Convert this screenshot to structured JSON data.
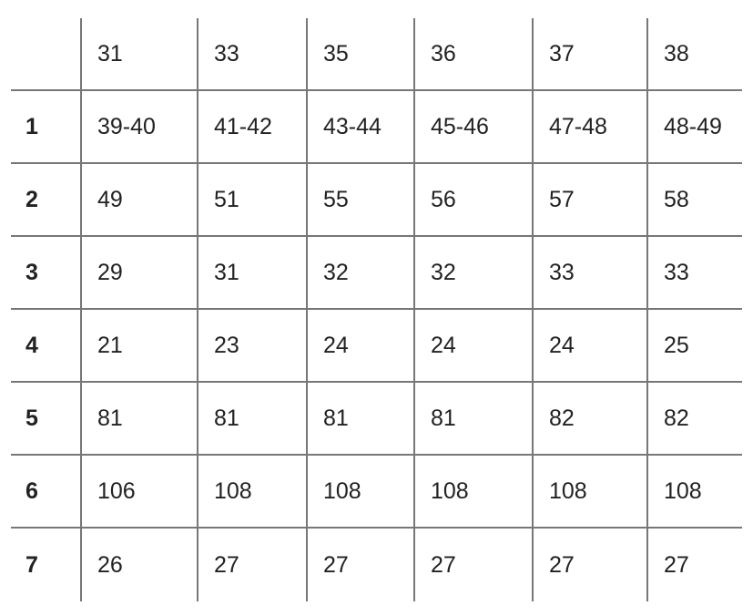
{
  "table": {
    "header": [
      "",
      "31",
      "33",
      "35",
      "36",
      "37",
      "38"
    ],
    "rows": [
      [
        "1",
        "39-40",
        "41-42",
        "43-44",
        "45-46",
        "47-48",
        "48-49"
      ],
      [
        "2",
        "49",
        "51",
        "55",
        "56",
        "57",
        "58"
      ],
      [
        "3",
        "29",
        "31",
        "32",
        "32",
        "33",
        "33"
      ],
      [
        "4",
        "21",
        "23",
        "24",
        "24",
        "24",
        "25"
      ],
      [
        "5",
        "81",
        "81",
        "81",
        "81",
        "82",
        "82"
      ],
      [
        "6",
        "106",
        "108",
        "108",
        "108",
        "108",
        "108"
      ],
      [
        "7",
        "26",
        "27",
        "27",
        "27",
        "27",
        "27"
      ]
    ]
  }
}
